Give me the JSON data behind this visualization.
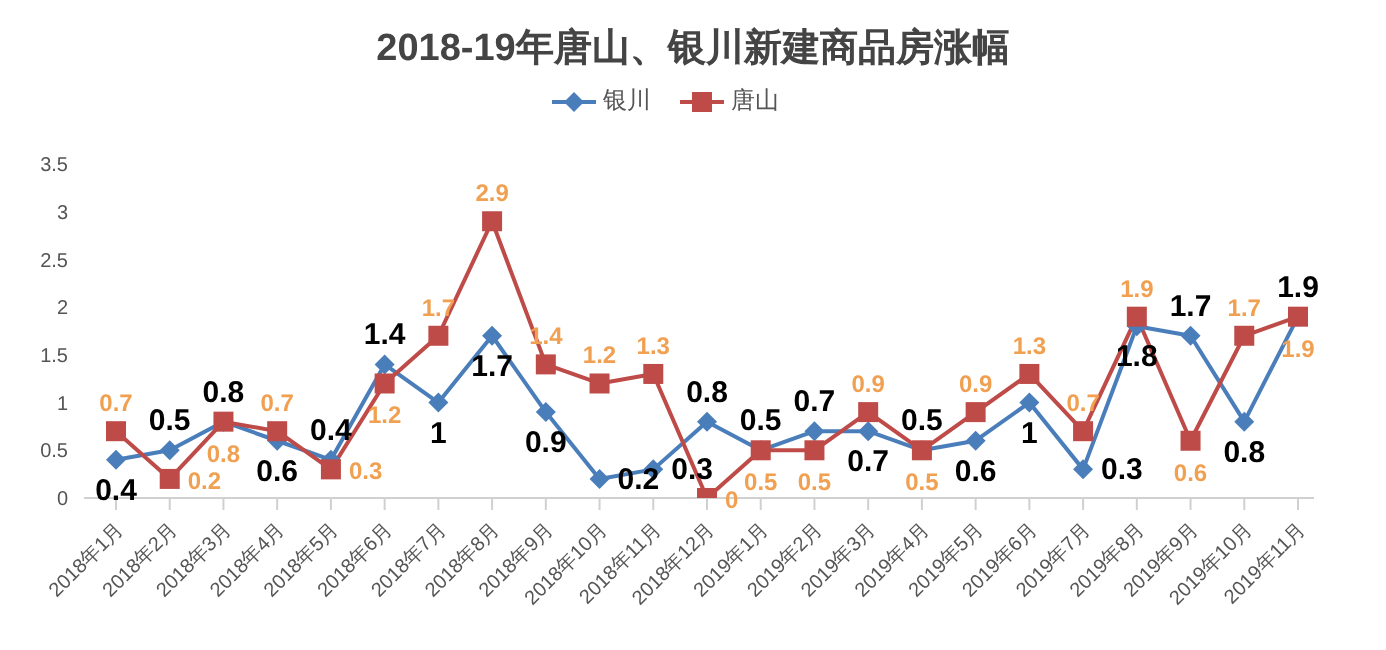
{
  "chart_data": {
    "type": "line",
    "title": "2018-19年唐山、银川新建商品房涨幅",
    "categories": [
      "2018年1月",
      "2018年2月",
      "2018年3月",
      "2018年4月",
      "2018年5月",
      "2018年6月",
      "2018年7月",
      "2018年8月",
      "2018年9月",
      "2018年10月",
      "2018年11月",
      "2018年12月",
      "2019年1月",
      "2019年2月",
      "2019年3月",
      "2019年4月",
      "2019年5月",
      "2019年6月",
      "2019年7月",
      "2019年8月",
      "2019年9月",
      "2019年10月",
      "2019年11月"
    ],
    "series": [
      {
        "name": "银川",
        "color": "#4a7ebb",
        "marker": "diamond",
        "values": [
          0.4,
          0.5,
          0.8,
          0.6,
          0.4,
          1.4,
          1,
          1.7,
          0.9,
          0.2,
          0.3,
          0.8,
          0.5,
          0.7,
          0.7,
          0.5,
          0.6,
          1,
          0.3,
          1.8,
          1.7,
          0.8,
          1.9
        ]
      },
      {
        "name": "唐山",
        "color": "#be4b48",
        "marker": "square",
        "values": [
          0.7,
          0.2,
          0.8,
          0.7,
          0.3,
          1.2,
          1.7,
          2.9,
          1.4,
          1.2,
          1.3,
          0,
          0.5,
          0.5,
          0.9,
          0.5,
          0.9,
          1.3,
          0.7,
          1.9,
          0.6,
          1.7,
          1.9
        ]
      }
    ],
    "ylim": [
      0,
      3.5
    ],
    "yticks": [
      0,
      0.5,
      1,
      1.5,
      2,
      2.5,
      3,
      3.5
    ],
    "legend": "top",
    "grid": false,
    "data_labels": true
  }
}
